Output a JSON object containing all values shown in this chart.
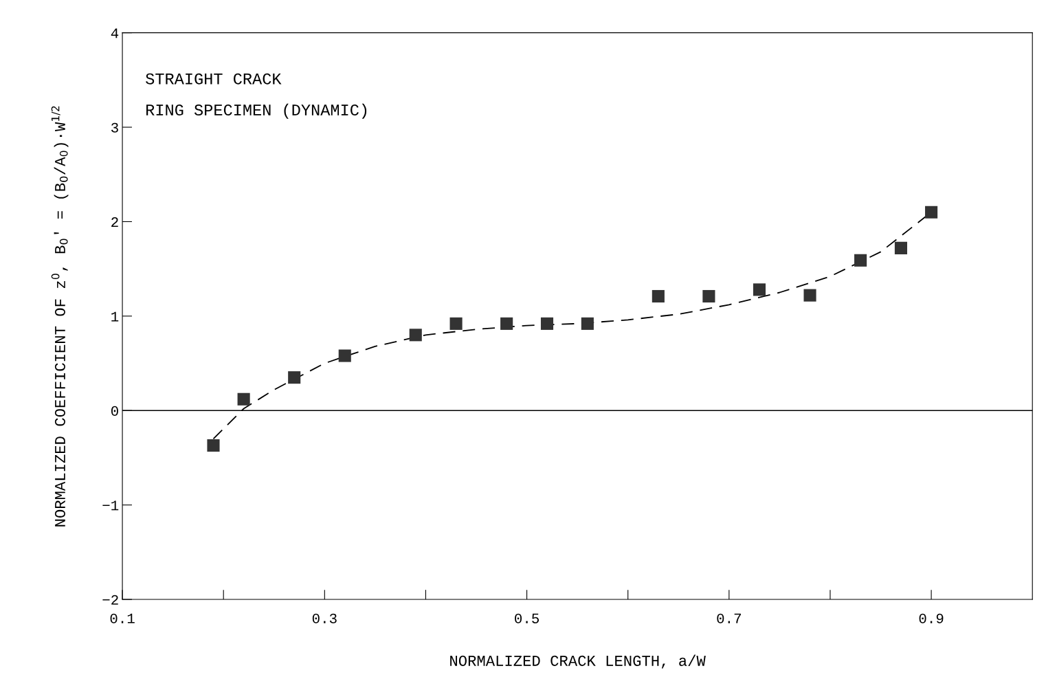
{
  "chart_data": {
    "type": "scatter",
    "xlabel": "NORMALIZED CRACK LENGTH, a/W",
    "ylabel": "NORMALIZED COEFFICIENT OF z$^{0}$, B$_{0}$' = (B$_{0}$/A$_{0}$)·W$^{1/2}$",
    "annotations": [
      "STRAIGHT CRACK",
      "RING SPECIMEN (DYNAMIC)"
    ],
    "xlim": [
      0.1,
      1.0
    ],
    "ylim": [
      -2,
      4
    ],
    "xticks": [
      0.1,
      {
        "value": 0.2,
        "label": null
      },
      0.3,
      {
        "value": 0.4,
        "label": null
      },
      0.5,
      {
        "value": 0.6,
        "label": null
      },
      0.7,
      {
        "value": 0.8,
        "label": null
      },
      0.9
    ],
    "yticks": [
      {
        "value": -2,
        "label": "−2"
      },
      {
        "value": -1,
        "label": "−1"
      },
      0,
      1,
      2,
      3,
      4
    ],
    "ref_lines": [
      {
        "axis": "y",
        "value": 0,
        "color": "#000000",
        "line_style": "solid"
      }
    ],
    "grid": false,
    "legend": false,
    "series": [
      {
        "marker": "square",
        "color": "#333333",
        "x": [
          0.19,
          0.22,
          0.27,
          0.32,
          0.39,
          0.43,
          0.48,
          0.52,
          0.56,
          0.63,
          0.68,
          0.73,
          0.78,
          0.83,
          0.87,
          0.9
        ],
        "values": [
          -0.37,
          0.12,
          0.35,
          0.58,
          0.8,
          0.92,
          0.92,
          0.92,
          0.92,
          1.21,
          1.21,
          1.28,
          1.22,
          1.59,
          1.72,
          2.1
        ]
      },
      {
        "type": "line",
        "line_style": "dashed",
        "marker": "none",
        "color": "#000000",
        "x": [
          0.19,
          0.22,
          0.25,
          0.3,
          0.35,
          0.4,
          0.45,
          0.5,
          0.55,
          0.6,
          0.65,
          0.7,
          0.75,
          0.8,
          0.85,
          0.9
        ],
        "values": [
          -0.3,
          0.02,
          0.22,
          0.5,
          0.68,
          0.8,
          0.86,
          0.9,
          0.92,
          0.96,
          1.02,
          1.12,
          1.25,
          1.42,
          1.68,
          2.1
        ]
      }
    ]
  }
}
